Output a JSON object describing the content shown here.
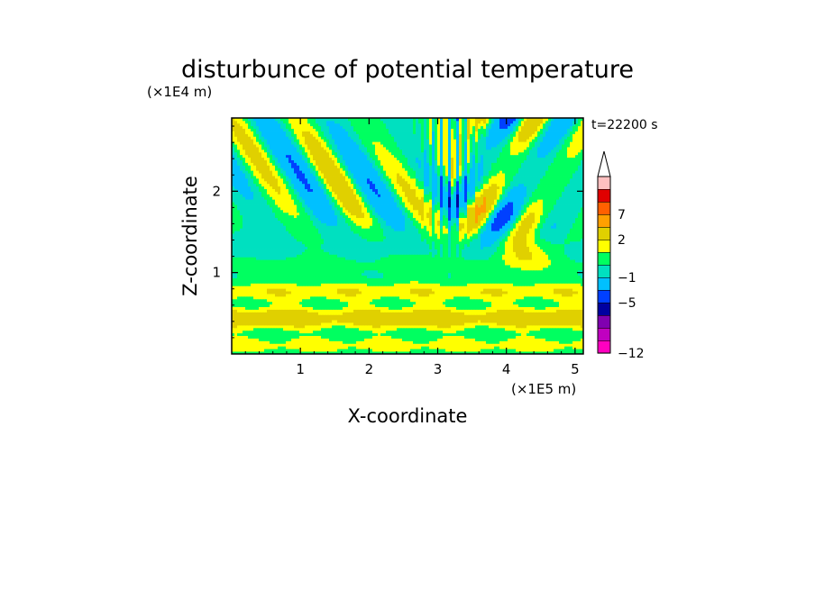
{
  "chart_data": {
    "type": "heatmap",
    "title": "disturbunce of potential temperature",
    "xlabel": "X-coordinate",
    "ylabel": "Z-coordinate",
    "x_unit": "(×1E5 m)",
    "y_unit": "(×1E4 m)",
    "time_label": "t=22200 s",
    "x_ticks": [
      1,
      2,
      3,
      4,
      5
    ],
    "y_ticks": [
      1,
      2
    ],
    "xlim": [
      0,
      5.12
    ],
    "ylim": [
      0,
      2.9
    ],
    "colorbar": {
      "labels": [
        "7",
        "2",
        "−1",
        "−5",
        "−12"
      ],
      "label_values": [
        7,
        2,
        -1,
        -5,
        -12
      ],
      "levels": [
        -12,
        -10,
        -8,
        -7,
        -5,
        -3,
        -1,
        0,
        1,
        2,
        4,
        7,
        9,
        11
      ],
      "colors": [
        "#ff00c0",
        "#c000c0",
        "#8000b0",
        "#0000a0",
        "#0040ff",
        "#00c0ff",
        "#00e0c0",
        "#00ff60",
        "#ffff00",
        "#e0d000",
        "#ffa000",
        "#ff6000",
        "#e00000",
        "#ffc0c0"
      ],
      "extend": "max"
    },
    "grid": false,
    "description_fields": {
      "lower_band": "weak positive (yellow/orange) layer below z≈1",
      "mid_band": "near-zero (green) layer around z≈1–1.5",
      "upper_band": "alternating wave pattern above z≈1.5 with strong positive/negative cores near x≈3.5–4.5"
    }
  }
}
